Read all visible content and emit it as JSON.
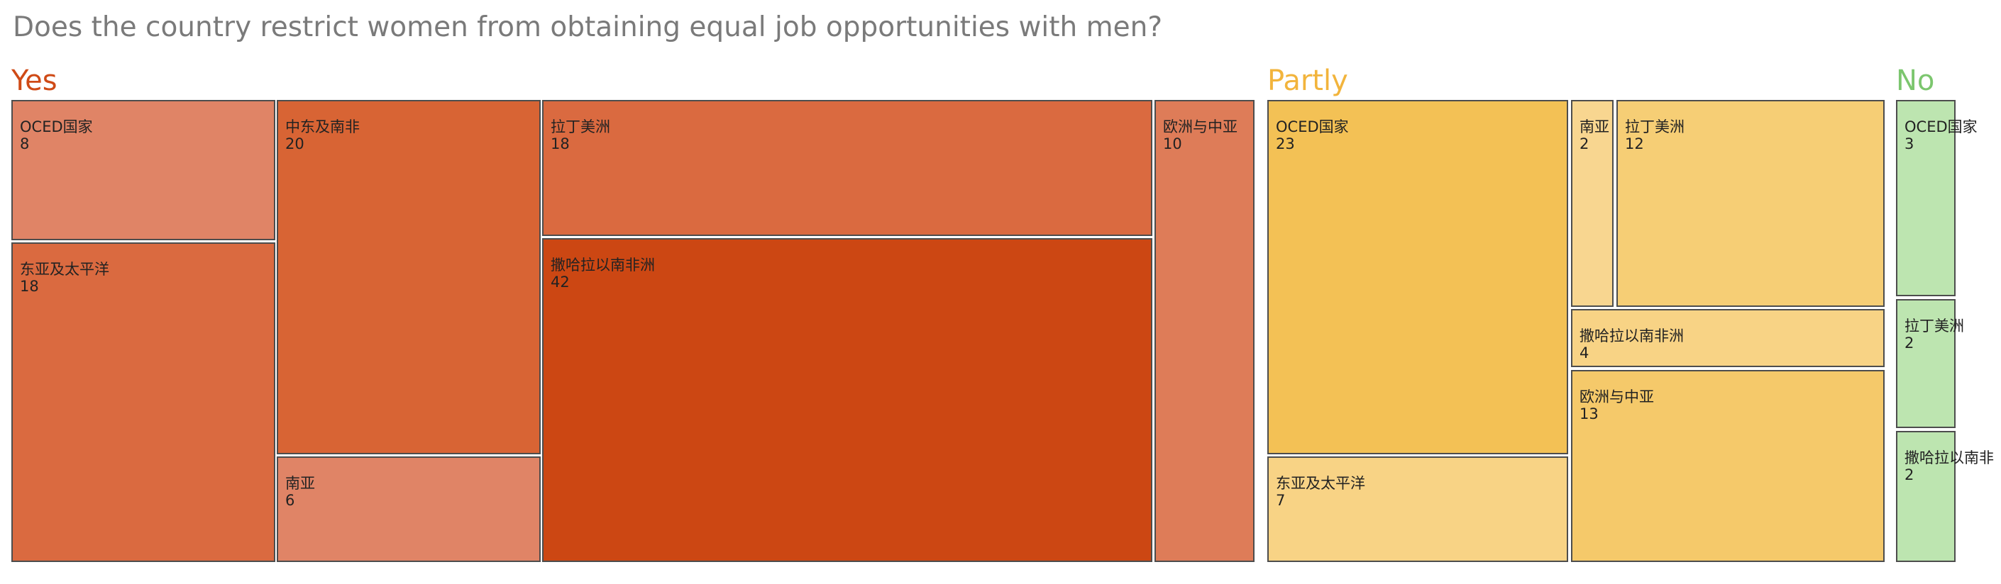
{
  "chart_data": {
    "type": "treemap",
    "title": "Does the country restrict women from obtaining equal job opportunities with men?",
    "groups": [
      {
        "name": "Yes",
        "color": "#cf4a16",
        "items": [
          {
            "label": "OCED国家",
            "value": 8,
            "color": "#e08466"
          },
          {
            "label": "东亚及太平洋",
            "value": 18,
            "color": "#da6a40"
          },
          {
            "label": "中东及南非",
            "value": 20,
            "color": "#d86434"
          },
          {
            "label": "南亚",
            "value": 6,
            "color": "#e08466"
          },
          {
            "label": "拉丁美洲",
            "value": 18,
            "color": "#da6a40"
          },
          {
            "label": "撒哈拉以南非洲",
            "value": 42,
            "color": "#cc4713"
          },
          {
            "label": "欧洲与中亚",
            "value": 10,
            "color": "#de7c58"
          }
        ]
      },
      {
        "name": "Partly",
        "color": "#f2b43c",
        "items": [
          {
            "label": "OCED国家",
            "value": 23,
            "color": "#f3c155"
          },
          {
            "label": "东亚及太平洋",
            "value": 7,
            "color": "#f8d385"
          },
          {
            "label": "南亚",
            "value": 2,
            "color": "#f8d690"
          },
          {
            "label": "拉丁美洲",
            "value": 12,
            "color": "#f6ce75"
          },
          {
            "label": "撒哈拉以南非洲",
            "value": 4,
            "color": "#f8d385"
          },
          {
            "label": "欧洲与中亚",
            "value": 13,
            "color": "#f5c96a"
          }
        ]
      },
      {
        "name": "No",
        "color": "#7cc66e",
        "items": [
          {
            "label": "OCED国家",
            "value": 3,
            "color": "#bde5b0"
          },
          {
            "label": "拉丁美洲",
            "value": 2,
            "color": "#bde5b0"
          },
          {
            "label": "撒哈拉以南非",
            "value": 2,
            "color": "#bde5b0"
          }
        ]
      }
    ]
  }
}
